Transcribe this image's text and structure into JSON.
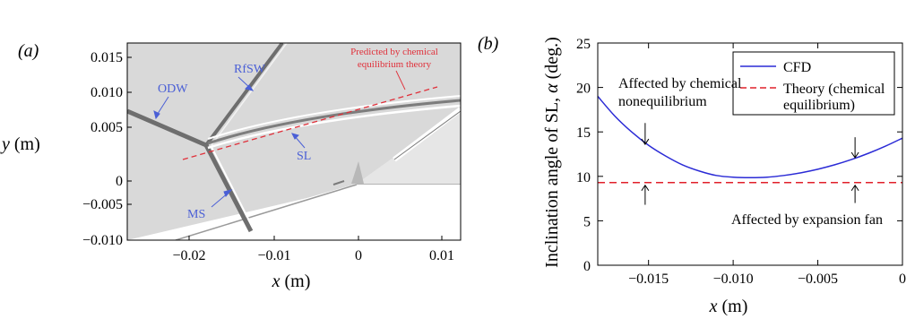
{
  "panel_a": {
    "label": "(a)",
    "xlabel_var": "x",
    "xlabel_unit": " (m)",
    "ylabel_var": "y",
    "ylabel_unit": " (m)",
    "x_ticks": [
      "−0.02",
      "−0.01",
      "0",
      "0.01"
    ],
    "y_ticks": [
      "0.015",
      "0.010",
      "0.005",
      "0",
      "−0.005",
      "−0.010"
    ],
    "annotations": {
      "odw": "ODW",
      "rfsw": "RfSW",
      "sl": "SL",
      "ms": "MS",
      "predicted_line1": "Predicted by chemical",
      "predicted_line2": "equilibrium theory"
    },
    "colors": {
      "label_blue": "#4a5fd6",
      "predicted_red": "#e0303a"
    }
  },
  "chart_data": {
    "type": "line",
    "label": "(b)",
    "xlabel_var": "x",
    "xlabel_unit": " (m)",
    "ylabel_text": "Inclination angle of SL, ",
    "ylabel_var": "α",
    "ylabel_unit": " (deg.)",
    "xlim": [
      -0.018,
      0
    ],
    "ylim": [
      0,
      25
    ],
    "x_ticks": [
      {
        "v": -0.015,
        "label": "−0.015"
      },
      {
        "v": -0.01,
        "label": "−0.010"
      },
      {
        "v": -0.005,
        "label": "−0.005"
      },
      {
        "v": 0,
        "label": "0"
      }
    ],
    "y_ticks": [
      {
        "v": 0,
        "label": "0"
      },
      {
        "v": 5,
        "label": "5"
      },
      {
        "v": 10,
        "label": "10"
      },
      {
        "v": 15,
        "label": "15"
      },
      {
        "v": 20,
        "label": "20"
      },
      {
        "v": 25,
        "label": "25"
      }
    ],
    "series": [
      {
        "name": "CFD",
        "color": "#2b2bd6",
        "style": "solid",
        "x": [
          -0.018,
          -0.017,
          -0.016,
          -0.015,
          -0.014,
          -0.013,
          -0.012,
          -0.011,
          -0.01,
          -0.009,
          -0.008,
          -0.007,
          -0.006,
          -0.005,
          -0.004,
          -0.003,
          -0.002,
          -0.001,
          0
        ],
        "y": [
          19.0,
          16.8,
          15.0,
          13.5,
          12.3,
          11.3,
          10.6,
          10.1,
          9.9,
          9.85,
          9.9,
          10.1,
          10.4,
          10.8,
          11.3,
          11.9,
          12.6,
          13.4,
          14.3
        ]
      },
      {
        "name": "Theory (chemical equilibrium)",
        "legend_line1": "Theory (chemical",
        "legend_line2": "equilibrium)",
        "color": "#e0202a",
        "style": "dashed",
        "x": [
          -0.018,
          0
        ],
        "y": [
          9.3,
          9.3
        ]
      }
    ],
    "annotations": {
      "nonequilibrium_line1": "Affected by chemical",
      "nonequilibrium_line2": "nonequilibrium",
      "expansion": "Affected by expansion fan"
    },
    "arrow_points": [
      {
        "x": -0.0152,
        "y_from": 16.0,
        "y_to": 13.6,
        "dir": "down"
      },
      {
        "x": -0.0152,
        "y_from": 6.8,
        "y_to": 9.0,
        "dir": "up"
      },
      {
        "x": -0.0028,
        "y_from": 14.4,
        "y_to": 12.1,
        "dir": "down"
      },
      {
        "x": -0.0028,
        "y_from": 7.0,
        "y_to": 9.0,
        "dir": "up"
      }
    ],
    "legend_position": "top-right",
    "grid": false
  }
}
